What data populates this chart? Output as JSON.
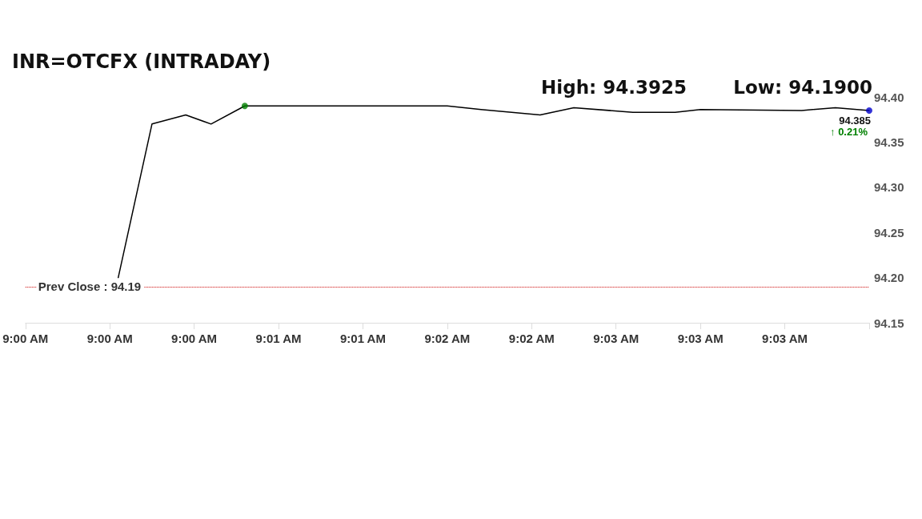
{
  "chart_data": {
    "type": "line",
    "title": "INR=OTCFX (INTRADAY)",
    "categories": [
      "9:00 AM",
      null,
      null,
      null,
      null,
      null,
      null,
      null,
      null,
      null,
      "9:00 AM",
      null,
      null,
      null,
      null,
      null,
      null,
      null,
      null,
      null,
      "9:00 AM",
      null,
      null,
      null,
      null,
      null,
      null,
      null,
      null,
      null,
      "9:01 AM",
      null,
      null,
      null,
      null,
      null,
      null,
      null,
      null,
      null,
      "9:01 AM",
      null,
      null,
      null,
      null,
      null,
      null,
      null,
      null,
      null,
      "9:02 AM",
      null,
      null,
      null,
      null,
      null,
      null,
      null,
      null,
      null,
      "9:02 AM",
      null,
      null,
      null,
      null,
      null,
      null,
      null,
      null,
      null,
      "9:03 AM",
      null,
      null,
      null,
      null,
      null,
      null,
      null,
      null,
      null,
      "9:03 AM",
      null,
      null,
      null,
      null,
      null,
      null,
      null,
      null,
      null,
      "9:03 AM",
      null,
      null,
      null,
      null,
      null,
      null,
      null,
      null,
      null,
      null
    ],
    "ylim": [
      94.15,
      94.4
    ],
    "yticks": [
      94.15,
      {
        "value": 94.2,
        "label": "94.20"
      },
      94.25,
      {
        "value": 94.3,
        "label": "94.30"
      },
      94.35,
      {
        "value": 94.4,
        "label": "94.40"
      }
    ],
    "grid": false,
    "marker": "none",
    "line_style": "solid",
    "series": [
      {
        "color": "#000000",
        "values": [
          null,
          null,
          null,
          null,
          null,
          null,
          null,
          null,
          null,
          null,
          null,
          94.2,
          null,
          null,
          null,
          94.37,
          null,
          null,
          null,
          94.38,
          null,
          null,
          94.37,
          null,
          null,
          null,
          94.39,
          null,
          null,
          null,
          94.39,
          null,
          null,
          null,
          94.39,
          null,
          null,
          null,
          null,
          null,
          null,
          null,
          94.39,
          null,
          null,
          null,
          94.39,
          null,
          null,
          null,
          94.39,
          null,
          null,
          null,
          94.386,
          null,
          null,
          null,
          null,
          null,
          null,
          94.38,
          null,
          null,
          null,
          94.388,
          null,
          null,
          null,
          null,
          null,
          null,
          94.383,
          null,
          null,
          null,
          null,
          94.383,
          null,
          null,
          94.386,
          null,
          null,
          null,
          null,
          null,
          null,
          null,
          null,
          null,
          null,
          null,
          94.385,
          null,
          null,
          null,
          94.388,
          null,
          null,
          null,
          94.385
        ]
      },
      {
        "type": "scatter",
        "marker": "circle",
        "color": "#008000",
        "values": [
          null,
          null,
          null,
          null,
          null,
          null,
          null,
          null,
          null,
          null,
          null,
          null,
          null,
          null,
          null,
          null,
          null,
          null,
          null,
          null,
          null,
          null,
          null,
          null,
          null,
          null,
          94.39,
          null,
          null,
          null,
          null,
          null,
          null,
          null,
          null,
          null,
          null,
          null,
          null,
          null,
          null,
          null,
          null,
          null,
          null,
          null,
          null,
          null,
          null,
          null,
          null,
          null,
          null,
          null,
          null,
          null,
          null,
          null,
          null,
          null,
          null,
          null,
          null,
          null,
          null,
          null,
          null,
          null,
          null,
          null,
          null,
          null,
          null,
          null,
          null,
          null,
          null,
          null,
          null,
          null,
          null,
          null,
          null,
          null,
          null,
          null,
          null,
          null,
          null,
          null,
          null,
          null,
          null,
          null,
          null,
          null,
          null,
          null,
          null,
          null,
          null
        ]
      },
      {
        "type": "scatter",
        "marker": "circle",
        "color": "#0000cc",
        "values": [
          null,
          null,
          null,
          null,
          null,
          null,
          null,
          null,
          null,
          null,
          null,
          null,
          null,
          null,
          null,
          null,
          null,
          null,
          null,
          null,
          null,
          null,
          null,
          null,
          null,
          null,
          null,
          null,
          null,
          null,
          null,
          null,
          null,
          null,
          null,
          null,
          null,
          null,
          null,
          null,
          null,
          null,
          null,
          null,
          null,
          null,
          null,
          null,
          null,
          null,
          null,
          null,
          null,
          null,
          null,
          null,
          null,
          null,
          null,
          null,
          null,
          null,
          null,
          null,
          null,
          null,
          null,
          null,
          null,
          null,
          null,
          null,
          null,
          null,
          null,
          null,
          null,
          null,
          null,
          null,
          null,
          null,
          null,
          null,
          null,
          null,
          null,
          null,
          null,
          null,
          null,
          null,
          null,
          null,
          null,
          null,
          null,
          null,
          null,
          null,
          94.385
        ]
      }
    ],
    "ref_lines": [
      {
        "axis": "y",
        "value": 94.19,
        "label": "Prev Close : 94.19",
        "color": "#cc0000",
        "line_style": "dotted"
      }
    ],
    "annotations": [
      "High: 94.3925",
      "Low: 94.1900",
      "↑ 0.21%",
      {
        "text": "94.385",
        "y": 94.385
      }
    ]
  }
}
